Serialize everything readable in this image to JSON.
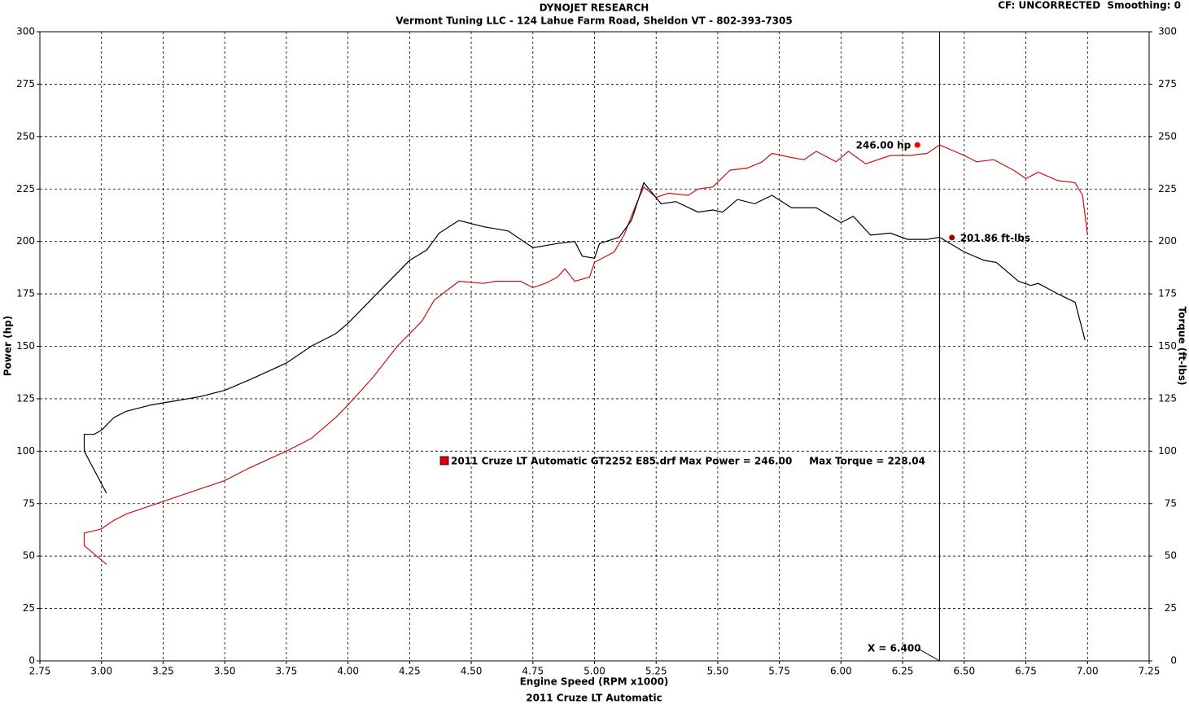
{
  "chart_data": {
    "type": "line",
    "title": "DYNOJET RESEARCH",
    "subtitle": "Vermont Tuning LLC - 124 Lahue Farm Road, Sheldon VT - 802-393-7305",
    "settings_text": "CF: UNCORRECTED  Smoothing: 0",
    "footer": "2011 Cruze LT Automatic",
    "xlabel": "Engine Speed (RPM x1000)",
    "ylabel": "Power (hp)",
    "y2label": "Torque (ft-lbs)",
    "legend": {
      "text": "2011 Cruze LT Automatic GT2252 E85.drf Max Power = 246.00     Max Torque = 228.04",
      "color": "#e00000"
    },
    "grid": true,
    "xlim": [
      2.75,
      7.25
    ],
    "xticks": [
      2.75,
      {
        "value": 3,
        "label": "3.00"
      },
      3.25,
      {
        "value": 3.5,
        "label": "3.50"
      },
      3.75,
      {
        "value": 4,
        "label": "4.00"
      },
      4.25,
      {
        "value": 4.5,
        "label": "4.50"
      },
      4.75,
      {
        "value": 5,
        "label": "5.00"
      },
      5.25,
      {
        "value": 5.5,
        "label": "5.50"
      },
      5.75,
      {
        "value": 6,
        "label": "6.00"
      },
      6.25,
      {
        "value": 6.5,
        "label": "6.50"
      },
      6.75,
      {
        "value": 7,
        "label": "7.00"
      },
      7.25
    ],
    "ylim": [
      0,
      300
    ],
    "yticks": [
      0,
      25,
      50,
      75,
      100,
      125,
      150,
      175,
      200,
      225,
      250,
      275,
      300
    ],
    "y2lim": [
      0,
      300
    ],
    "y2ticks": [
      0,
      25,
      50,
      75,
      100,
      125,
      150,
      175,
      200,
      225,
      250,
      275,
      300
    ],
    "series": [
      {
        "name": "Power",
        "color": "#cc1010",
        "x": [
          3.02,
          2.93,
          2.93,
          2.97,
          3.0,
          3.05,
          3.1,
          3.25,
          3.4,
          3.5,
          3.6,
          3.75,
          3.85,
          3.95,
          4.0,
          4.1,
          4.2,
          4.3,
          4.35,
          4.45,
          4.55,
          4.6,
          4.7,
          4.75,
          4.8,
          4.85,
          4.88,
          4.92,
          4.98,
          5.0,
          5.08,
          5.12,
          5.17,
          5.2,
          5.25,
          5.3,
          5.38,
          5.42,
          5.48,
          5.55,
          5.62,
          5.68,
          5.72,
          5.8,
          5.85,
          5.9,
          5.98,
          6.03,
          6.1,
          6.2,
          6.28,
          6.35,
          6.4,
          6.5,
          6.55,
          6.62,
          6.7,
          6.75,
          6.8,
          6.88,
          6.95,
          6.98,
          7.0
        ],
        "values": [
          46,
          55,
          61,
          62,
          63,
          67,
          70,
          76,
          82,
          86,
          92,
          100,
          106,
          116,
          122,
          135,
          150,
          162,
          172,
          181,
          180,
          181,
          181,
          178,
          180,
          183,
          187,
          181,
          183,
          190,
          195,
          203,
          218,
          226,
          221,
          223,
          222,
          225,
          226,
          234,
          235,
          238,
          242,
          240,
          239,
          243,
          238,
          243,
          237,
          241,
          241,
          242,
          246,
          241,
          238,
          239,
          234,
          230,
          233,
          229,
          228,
          222,
          203
        ]
      },
      {
        "name": "Torque",
        "color": "#000000",
        "axis": "y2",
        "x": [
          3.02,
          2.93,
          2.93,
          2.97,
          3.0,
          3.05,
          3.1,
          3.2,
          3.3,
          3.4,
          3.5,
          3.6,
          3.75,
          3.85,
          3.95,
          4.0,
          4.1,
          4.25,
          4.32,
          4.37,
          4.45,
          4.55,
          4.65,
          4.75,
          4.85,
          4.92,
          4.95,
          5.0,
          5.02,
          5.1,
          5.15,
          5.2,
          5.27,
          5.33,
          5.42,
          5.48,
          5.52,
          5.58,
          5.65,
          5.72,
          5.8,
          5.9,
          6.0,
          6.05,
          6.12,
          6.2,
          6.27,
          6.35,
          6.4,
          6.5,
          6.58,
          6.63,
          6.72,
          6.77,
          6.8,
          6.88,
          6.95,
          6.99
        ],
        "values": [
          80,
          100,
          108,
          108,
          110,
          116,
          119,
          122,
          124,
          126,
          129,
          134,
          142,
          150,
          156,
          161,
          173,
          191,
          196,
          204,
          210,
          207,
          205,
          197,
          199,
          200,
          193,
          192,
          199,
          202,
          210,
          228,
          218,
          219,
          214,
          215,
          214,
          220,
          218,
          222,
          216,
          216,
          209,
          212,
          203,
          204,
          201,
          201,
          202,
          195,
          191,
          190,
          181,
          179,
          180,
          175,
          171,
          153
        ]
      }
    ],
    "cursor": {
      "value": 6.4,
      "label": "X = 6.400"
    },
    "annotations": [
      {
        "text": "246.00 hp",
        "x": 6.31,
        "y": 246,
        "color": "#ee0000"
      },
      {
        "text": "201.86 ft-lbs",
        "x": 6.45,
        "y": 201.86,
        "color": "#aa0000"
      }
    ]
  }
}
